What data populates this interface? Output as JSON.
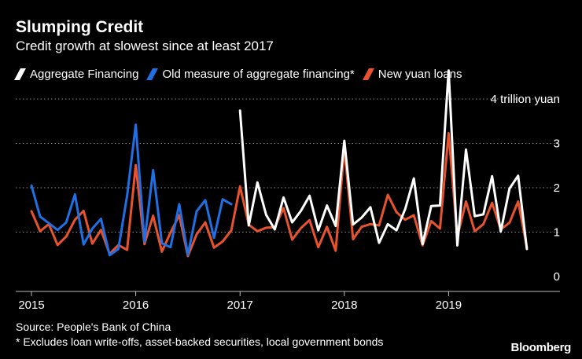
{
  "header": {
    "title": "Slumping Credit",
    "subtitle": "Credit growth at slowest since at least 2017"
  },
  "legend": [
    {
      "label": "Aggregate Financing",
      "color": "#ffffff"
    },
    {
      "label": "Old measure of aggregate financing*",
      "color": "#1f6fe5"
    },
    {
      "label": "New yuan loans",
      "color": "#e8532e"
    }
  ],
  "footer": {
    "source": "Source: People's Bank of China",
    "note": "* Excludes loan write-offs, asset-backed securities, local government bonds"
  },
  "brand": "Bloomberg",
  "chart_data": {
    "type": "line",
    "title": "Slumping Credit",
    "subtitle": "Credit growth at slowest since at least 2017",
    "ylabel": "trillion yuan",
    "ylim": [
      0,
      4
    ],
    "yticks": [
      0,
      1,
      2,
      3,
      4
    ],
    "ytick_labels": [
      "0",
      "1",
      "2",
      "3",
      "4 trillion yuan"
    ],
    "xticks": [
      {
        "label": "2015",
        "month_index": 0
      },
      {
        "label": "2016",
        "month_index": 12
      },
      {
        "label": "2017",
        "month_index": 24
      },
      {
        "label": "2018",
        "month_index": 36
      },
      {
        "label": "2019",
        "month_index": 48
      }
    ],
    "x_start": "2015-01",
    "grid": true,
    "series": [
      {
        "name": "Old measure of aggregate financing*",
        "color": "#1f6fe5",
        "start_index": 0,
        "values": [
          2.05,
          1.35,
          1.2,
          1.05,
          1.22,
          1.85,
          0.72,
          1.08,
          1.3,
          0.48,
          0.62,
          1.82,
          3.42,
          0.78,
          2.4,
          0.75,
          0.66,
          1.63,
          0.49,
          1.47,
          1.72,
          0.87,
          1.74,
          1.63
        ]
      },
      {
        "name": "Aggregate Financing",
        "color": "#ffffff",
        "start_index": 24,
        "values": [
          3.74,
          1.15,
          2.12,
          1.39,
          1.06,
          1.78,
          1.22,
          1.48,
          1.82,
          1.04,
          1.6,
          1.14,
          3.06,
          1.17,
          1.33,
          1.56,
          0.76,
          1.18,
          1.04,
          1.52,
          2.21,
          0.73,
          1.59,
          1.6,
          4.64,
          0.7,
          2.86,
          1.36,
          1.4,
          2.26,
          1.01,
          1.98,
          2.27,
          0.62
        ]
      },
      {
        "name": "New yuan loans",
        "color": "#e8532e",
        "start_index": 0,
        "values": [
          1.47,
          1.02,
          1.18,
          0.71,
          0.9,
          1.28,
          1.48,
          0.74,
          1.05,
          0.51,
          0.71,
          0.6,
          2.51,
          0.73,
          1.37,
          0.56,
          0.99,
          1.38,
          0.46,
          0.95,
          1.22,
          0.65,
          0.79,
          1.04,
          2.03,
          1.17,
          1.02,
          1.1,
          1.11,
          1.54,
          0.83,
          1.09,
          1.27,
          0.66,
          1.12,
          0.58,
          2.9,
          0.84,
          1.12,
          1.18,
          1.15,
          1.84,
          1.45,
          1.28,
          1.38,
          0.7,
          1.25,
          1.08,
          3.23,
          0.89,
          1.69,
          1.02,
          1.18,
          1.66,
          1.06,
          1.21,
          1.69,
          0.66
        ]
      }
    ]
  }
}
